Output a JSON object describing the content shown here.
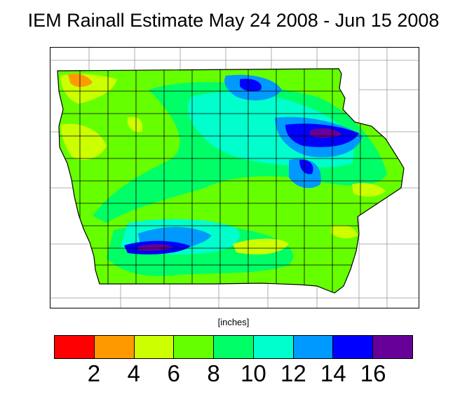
{
  "title": "IEM Rainall Estimate May 24 2008 - Jun 15 2008",
  "units": "[inches]",
  "legend": {
    "colors": [
      "#ff0000",
      "#ff9900",
      "#ccff00",
      "#66ff00",
      "#00ff66",
      "#00ffcc",
      "#0099ff",
      "#0000ff",
      "#660099"
    ],
    "ticks": [
      "2",
      "4",
      "6",
      "8",
      "10",
      "12",
      "14",
      "16"
    ]
  },
  "map": {
    "region": "Iowa",
    "background_color": "#ffffff",
    "boundary_color": "#000000"
  }
}
